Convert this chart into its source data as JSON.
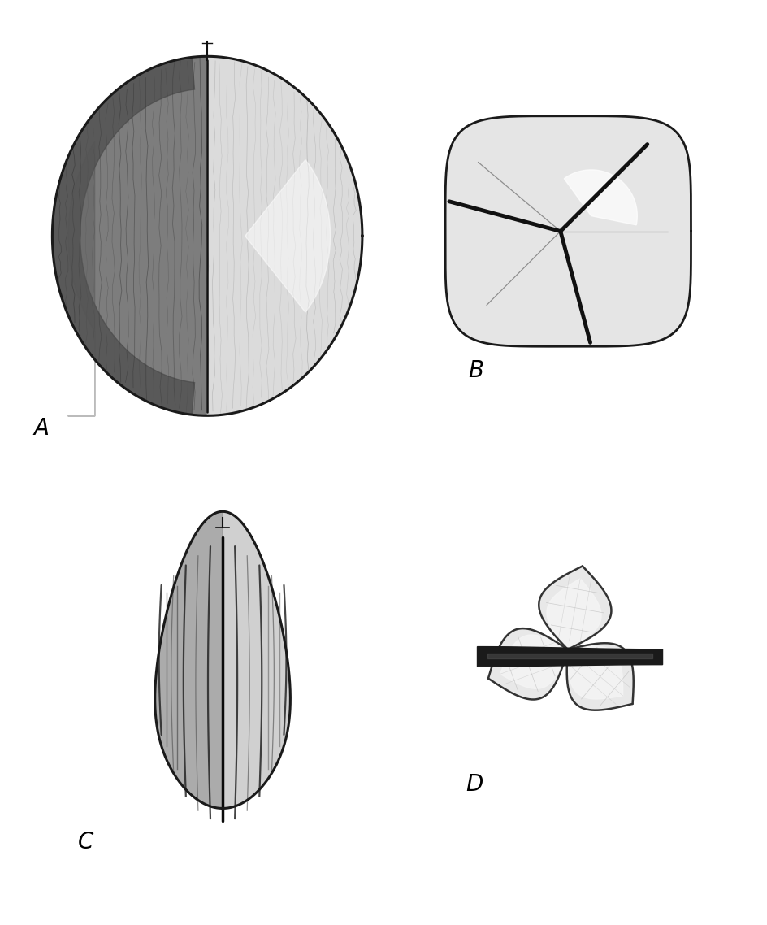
{
  "bg_color": "#ffffff",
  "label_A": "A",
  "label_B": "B",
  "label_C": "C",
  "label_D": "D",
  "label_fontsize": 20,
  "outline_color": "#1a1a1a",
  "dark_line": "#111111",
  "mid_gray": "#888888",
  "light_gray": "#cccccc",
  "fill_base": "#d0d0d0",
  "fill_dark": "#707070",
  "fill_light": "#eeeeee"
}
